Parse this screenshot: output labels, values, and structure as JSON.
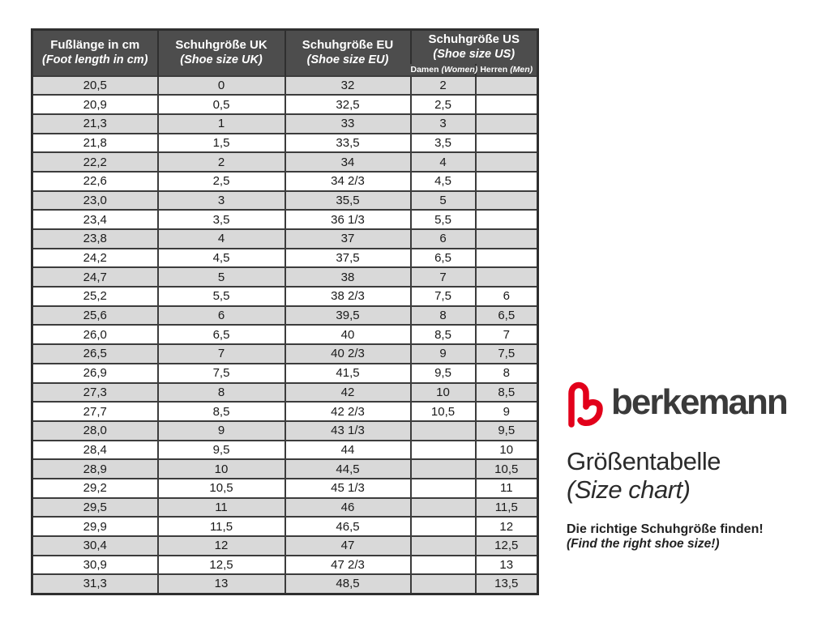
{
  "table": {
    "columns": [
      {
        "de": "Fußlänge in cm",
        "en": "(Foot length in cm)"
      },
      {
        "de": "Schuhgröße UK",
        "en": "(Shoe size UK)"
      },
      {
        "de": "Schuhgröße EU",
        "en": "(Shoe size EU)"
      },
      {
        "de": "Schuhgröße US",
        "en": "(Shoe size US)"
      }
    ],
    "us_subcolumns": [
      {
        "de": "Damen",
        "en": "(Women)"
      },
      {
        "de": "Herren",
        "en": "(Men)"
      }
    ],
    "rows": [
      [
        "20,5",
        "0",
        "32",
        "2",
        ""
      ],
      [
        "20,9",
        "0,5",
        "32,5",
        "2,5",
        ""
      ],
      [
        "21,3",
        "1",
        "33",
        "3",
        ""
      ],
      [
        "21,8",
        "1,5",
        "33,5",
        "3,5",
        ""
      ],
      [
        "22,2",
        "2",
        "34",
        "4",
        ""
      ],
      [
        "22,6",
        "2,5",
        "34 2/3",
        "4,5",
        ""
      ],
      [
        "23,0",
        "3",
        "35,5",
        "5",
        ""
      ],
      [
        "23,4",
        "3,5",
        "36 1/3",
        "5,5",
        ""
      ],
      [
        "23,8",
        "4",
        "37",
        "6",
        ""
      ],
      [
        "24,2",
        "4,5",
        "37,5",
        "6,5",
        ""
      ],
      [
        "24,7",
        "5",
        "38",
        "7",
        ""
      ],
      [
        "25,2",
        "5,5",
        "38 2/3",
        "7,5",
        "6"
      ],
      [
        "25,6",
        "6",
        "39,5",
        "8",
        "6,5"
      ],
      [
        "26,0",
        "6,5",
        "40",
        "8,5",
        "7"
      ],
      [
        "26,5",
        "7",
        "40 2/3",
        "9",
        "7,5"
      ],
      [
        "26,9",
        "7,5",
        "41,5",
        "9,5",
        "8"
      ],
      [
        "27,3",
        "8",
        "42",
        "10",
        "8,5"
      ],
      [
        "27,7",
        "8,5",
        "42 2/3",
        "10,5",
        "9"
      ],
      [
        "28,0",
        "9",
        "43 1/3",
        "",
        "9,5"
      ],
      [
        "28,4",
        "9,5",
        "44",
        "",
        "10"
      ],
      [
        "28,9",
        "10",
        "44,5",
        "",
        "10,5"
      ],
      [
        "29,2",
        "10,5",
        "45 1/3",
        "",
        "11"
      ],
      [
        "29,5",
        "11",
        "46",
        "",
        "11,5"
      ],
      [
        "29,9",
        "11,5",
        "46,5",
        "",
        "12"
      ],
      [
        "30,4",
        "12",
        "47",
        "",
        "12,5"
      ],
      [
        "30,9",
        "12,5",
        "47 2/3",
        "",
        "13"
      ],
      [
        "31,3",
        "13",
        "48,5",
        "",
        "13,5"
      ]
    ]
  },
  "branding": {
    "brand": "berkemann",
    "title_de": "Größentabelle",
    "title_en": "(Size chart)",
    "tagline_de": "Die richtige Schuhgröße finden!",
    "tagline_en": "(Find the right shoe size!)"
  },
  "icons": {
    "logo": "berkemann-heart-b-logo"
  },
  "colors": {
    "header_bg": "#4d4d4d",
    "row_alt": "#d9d9d9",
    "border": "#2f2f2f",
    "logo_red": "#e2001a",
    "text": "#1a1a1a"
  }
}
